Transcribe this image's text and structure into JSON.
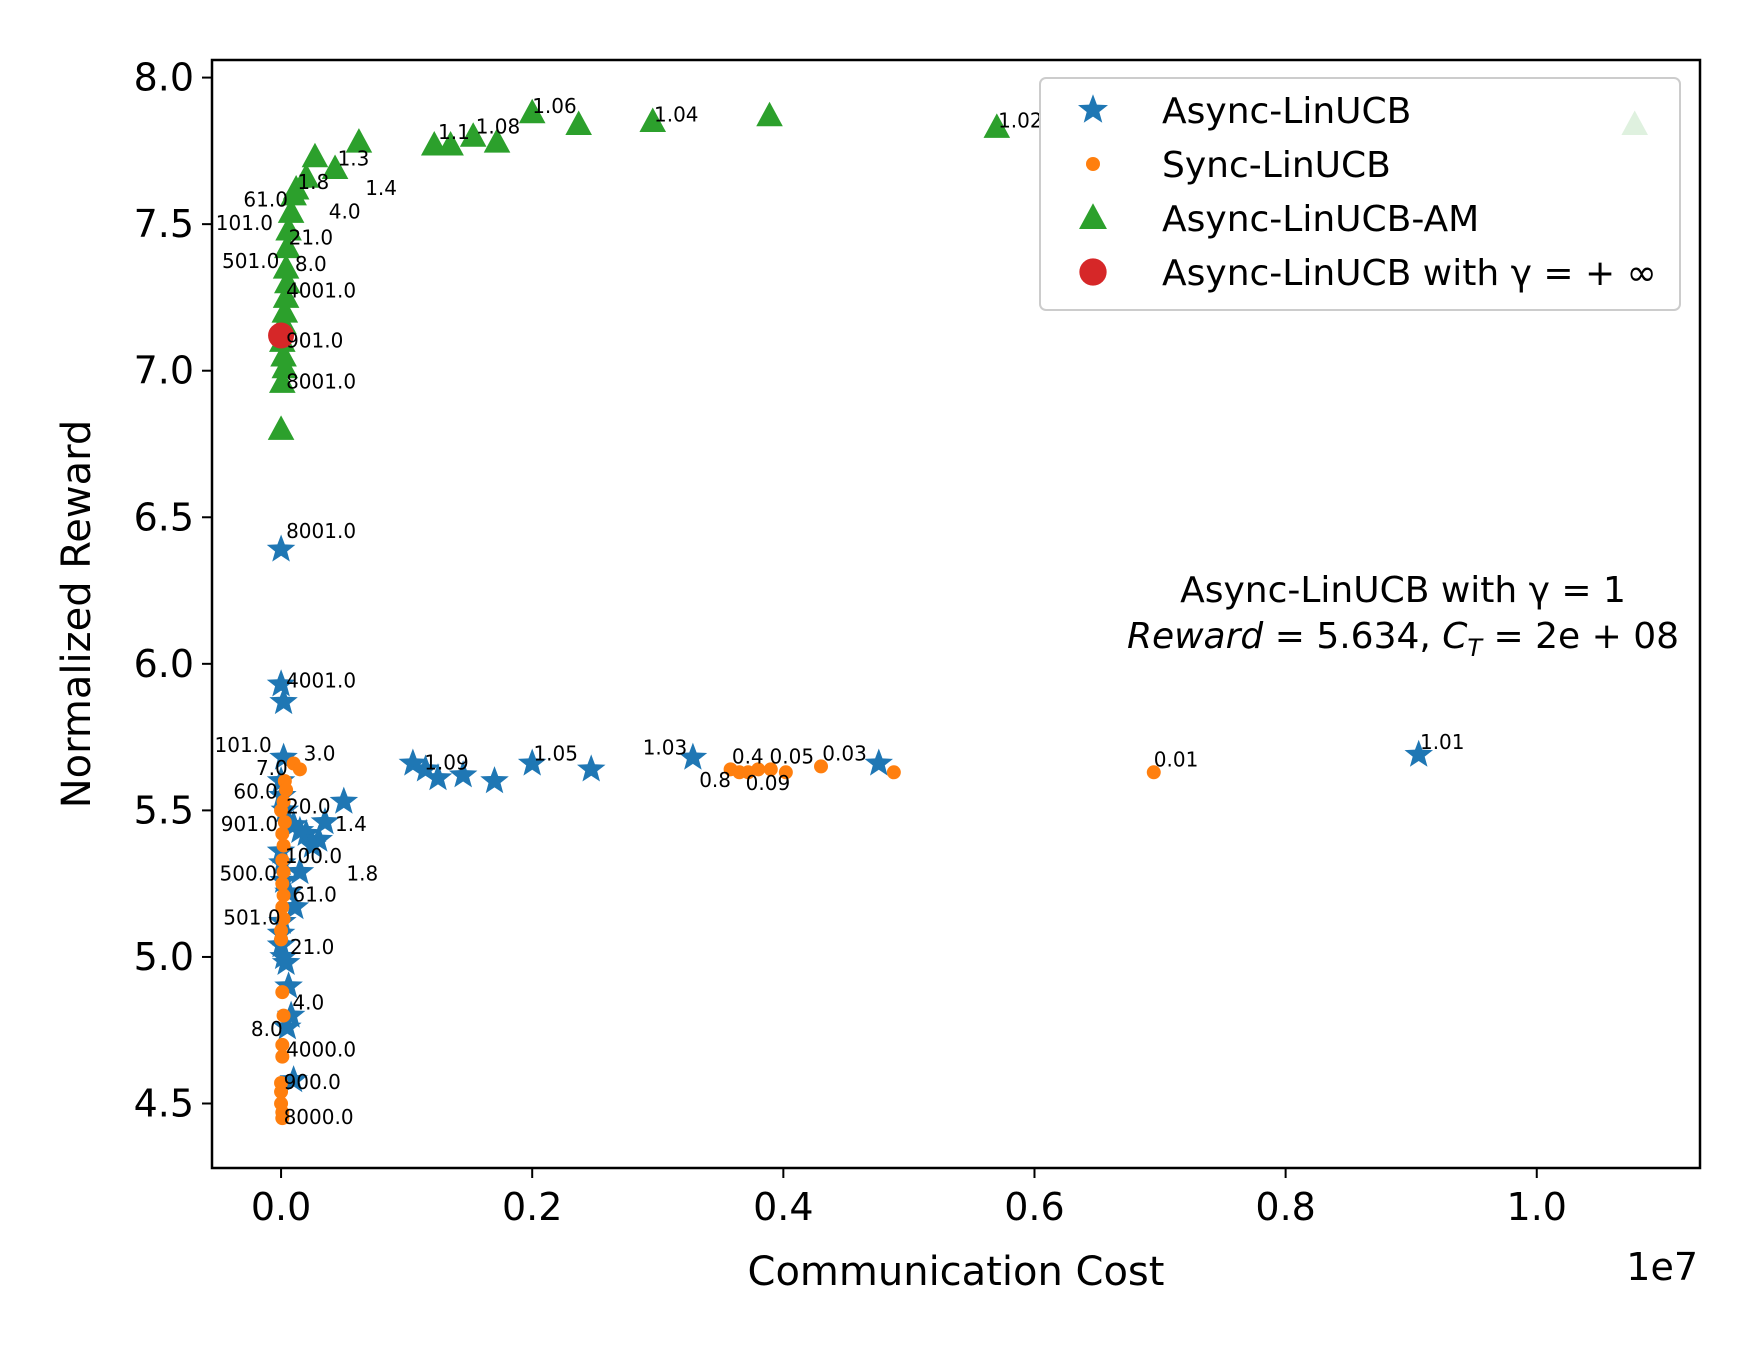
{
  "chart_data": {
    "type": "scatter",
    "title": "",
    "xlabel": "Communication Cost",
    "ylabel": "Normalized Reward",
    "x_offset_label": "1e7",
    "xlim": [
      -0.055,
      1.13
    ],
    "ylim": [
      4.28,
      8.06
    ],
    "x_ticks": [
      0.0,
      0.2,
      0.4,
      0.6,
      0.8,
      1.0
    ],
    "x_tick_labels": [
      "0.0",
      "0.2",
      "0.4",
      "0.6",
      "0.8",
      "1.0"
    ],
    "y_ticks": [
      4.5,
      5.0,
      5.5,
      6.0,
      6.5,
      7.0,
      7.5,
      8.0
    ],
    "y_tick_labels": [
      "4.5",
      "5.0",
      "5.5",
      "6.0",
      "6.5",
      "7.0",
      "7.5",
      "8.0"
    ],
    "colors": {
      "async": "#1f77b4",
      "sync": "#ff7f0e",
      "am": "#2ca02c",
      "inf": "#d62728"
    },
    "legend": {
      "position": "top-right",
      "entries": [
        "Async-LinUCB",
        "Sync-LinUCB",
        "Async-LinUCB-AM",
        "Async-LinUCB with γ = + ∞"
      ]
    },
    "note": {
      "line1": "Async-LinUCB with γ = 1",
      "line2": "Reward = 5.634, C_T = 2e + 08",
      "line2_a": "Reward",
      "line2_b": " = 5.634, ",
      "line2_c": "C",
      "line2_d": "T",
      "line2_e": " = 2e + 08"
    },
    "series": [
      {
        "name": "Async-LinUCB",
        "marker": "star",
        "color": "#1f77b4",
        "points": [
          [
            0.0,
            6.39
          ],
          [
            0.0,
            5.93
          ],
          [
            0.002,
            5.87
          ],
          [
            0.002,
            5.68
          ],
          [
            0.0,
            5.6
          ],
          [
            0.001,
            5.55
          ],
          [
            0.003,
            5.5
          ],
          [
            0.01,
            5.45
          ],
          [
            0.02,
            5.42
          ],
          [
            0.03,
            5.4
          ],
          [
            0.025,
            5.38
          ],
          [
            0.015,
            5.43
          ],
          [
            0.035,
            5.46
          ],
          [
            0.05,
            5.53
          ],
          [
            0.0,
            5.36
          ],
          [
            0.001,
            5.32
          ],
          [
            0.015,
            5.29
          ],
          [
            0.002,
            5.26
          ],
          [
            0.006,
            5.22
          ],
          [
            0.011,
            5.17
          ],
          [
            0.001,
            5.12
          ],
          [
            0.0,
            5.08
          ],
          [
            0.0,
            5.04
          ],
          [
            0.002,
            5.0
          ],
          [
            0.004,
            4.98
          ],
          [
            0.006,
            4.9
          ],
          [
            0.008,
            4.8
          ],
          [
            0.005,
            4.76
          ],
          [
            0.01,
            4.58
          ],
          [
            0.105,
            5.66
          ],
          [
            0.115,
            5.64
          ],
          [
            0.125,
            5.61
          ],
          [
            0.145,
            5.62
          ],
          [
            0.17,
            5.6
          ],
          [
            0.2,
            5.66
          ],
          [
            0.247,
            5.64
          ],
          [
            0.328,
            5.68
          ],
          [
            0.476,
            5.66
          ],
          [
            0.906,
            5.69
          ]
        ]
      },
      {
        "name": "Sync-LinUCB",
        "marker": "circle",
        "color": "#ff7f0e",
        "points": [
          [
            0.01,
            5.66
          ],
          [
            0.015,
            5.64
          ],
          [
            0.003,
            5.6
          ],
          [
            0.004,
            5.57
          ],
          [
            0.002,
            5.53
          ],
          [
            0.0,
            5.5
          ],
          [
            0.003,
            5.46
          ],
          [
            0.001,
            5.42
          ],
          [
            0.002,
            5.38
          ],
          [
            0.001,
            5.33
          ],
          [
            0.002,
            5.29
          ],
          [
            0.001,
            5.25
          ],
          [
            0.002,
            5.21
          ],
          [
            0.001,
            5.17
          ],
          [
            0.002,
            5.13
          ],
          [
            0.0,
            5.09
          ],
          [
            0.0,
            5.06
          ],
          [
            0.001,
            4.88
          ],
          [
            0.002,
            4.8
          ],
          [
            0.001,
            4.7
          ],
          [
            0.001,
            4.66
          ],
          [
            0.0,
            4.57
          ],
          [
            0.0,
            4.54
          ],
          [
            0.0,
            4.5
          ],
          [
            0.001,
            4.47
          ],
          [
            0.001,
            4.45
          ],
          [
            0.358,
            5.64
          ],
          [
            0.365,
            5.63
          ],
          [
            0.372,
            5.63
          ],
          [
            0.38,
            5.64
          ],
          [
            0.39,
            5.64
          ],
          [
            0.402,
            5.63
          ],
          [
            0.43,
            5.65
          ],
          [
            0.488,
            5.63
          ],
          [
            0.695,
            5.63
          ]
        ]
      },
      {
        "name": "Async-LinUCB-AM",
        "marker": "triangle",
        "color": "#2ca02c",
        "points": [
          [
            0.0,
            6.8
          ],
          [
            0.001,
            6.96
          ],
          [
            0.003,
            7.01
          ],
          [
            0.002,
            7.05
          ],
          [
            0.001,
            7.1
          ],
          [
            0.002,
            7.16
          ],
          [
            0.003,
            7.2
          ],
          [
            0.004,
            7.25
          ],
          [
            0.005,
            7.3
          ],
          [
            0.004,
            7.35
          ],
          [
            0.005,
            7.42
          ],
          [
            0.006,
            7.48
          ],
          [
            0.008,
            7.54
          ],
          [
            0.01,
            7.6
          ],
          [
            0.012,
            7.62
          ],
          [
            0.02,
            7.66
          ],
          [
            0.027,
            7.73
          ],
          [
            0.043,
            7.69
          ],
          [
            0.062,
            7.78
          ],
          [
            0.122,
            7.77
          ],
          [
            0.135,
            7.77
          ],
          [
            0.153,
            7.8
          ],
          [
            0.172,
            7.78
          ],
          [
            0.2,
            7.88
          ],
          [
            0.237,
            7.84
          ],
          [
            0.296,
            7.85
          ],
          [
            0.389,
            7.87
          ],
          [
            0.57,
            7.83
          ],
          [
            1.078,
            7.84
          ]
        ]
      },
      {
        "name": "Async-LinUCB with γ = + ∞",
        "marker": "bigcircle",
        "color": "#d62728",
        "points": [
          [
            0.0,
            7.12
          ]
        ]
      }
    ],
    "annotations": [
      {
        "text": "1.06",
        "x": 0.2,
        "y": 7.88
      },
      {
        "text": "1.1",
        "x": 0.125,
        "y": 7.79
      },
      {
        "text": "1.08",
        "x": 0.155,
        "y": 7.81
      },
      {
        "text": "1.04",
        "x": 0.297,
        "y": 7.85
      },
      {
        "text": "1.02",
        "x": 0.571,
        "y": 7.83
      },
      {
        "text": "1.3",
        "x": 0.045,
        "y": 7.7
      },
      {
        "text": "1.8",
        "x": 0.013,
        "y": 7.62
      },
      {
        "text": "1.4",
        "x": 0.067,
        "y": 7.6
      },
      {
        "text": "61.0",
        "x": -0.03,
        "y": 7.56
      },
      {
        "text": "4.0",
        "x": 0.038,
        "y": 7.52
      },
      {
        "text": "101.0",
        "x": -0.052,
        "y": 7.48
      },
      {
        "text": "21.0",
        "x": 0.006,
        "y": 7.43
      },
      {
        "text": "501.0",
        "x": -0.047,
        "y": 7.35
      },
      {
        "text": "8.0",
        "x": 0.011,
        "y": 7.34
      },
      {
        "text": "4001.0",
        "x": 0.004,
        "y": 7.25
      },
      {
        "text": "901.0",
        "x": 0.004,
        "y": 7.08
      },
      {
        "text": "8001.0",
        "x": 0.004,
        "y": 6.94
      },
      {
        "text": "8001.0",
        "x": 0.004,
        "y": 6.43
      },
      {
        "text": "4001.0",
        "x": 0.004,
        "y": 5.92
      },
      {
        "text": "101.0",
        "x": -0.053,
        "y": 5.7
      },
      {
        "text": "3.0",
        "x": 0.018,
        "y": 5.67
      },
      {
        "text": "7.0",
        "x": -0.02,
        "y": 5.62
      },
      {
        "text": "1.09",
        "x": 0.114,
        "y": 5.64
      },
      {
        "text": "1.05",
        "x": 0.201,
        "y": 5.67
      },
      {
        "text": "1.03",
        "x": 0.288,
        "y": 5.69
      },
      {
        "text": "0.4",
        "x": 0.359,
        "y": 5.66
      },
      {
        "text": "0.05",
        "x": 0.389,
        "y": 5.66
      },
      {
        "text": "0.03",
        "x": 0.431,
        "y": 5.67
      },
      {
        "text": "0.8",
        "x": 0.333,
        "y": 5.58
      },
      {
        "text": "0.09",
        "x": 0.37,
        "y": 5.57
      },
      {
        "text": "0.01",
        "x": 0.695,
        "y": 5.65
      },
      {
        "text": "1.01",
        "x": 0.907,
        "y": 5.71
      },
      {
        "text": "60.0",
        "x": -0.038,
        "y": 5.54
      },
      {
        "text": "20.0",
        "x": 0.004,
        "y": 5.49
      },
      {
        "text": "901.0",
        "x": -0.048,
        "y": 5.43
      },
      {
        "text": "1.4",
        "x": 0.043,
        "y": 5.43
      },
      {
        "text": "100.0",
        "x": 0.003,
        "y": 5.32
      },
      {
        "text": "500.0",
        "x": -0.049,
        "y": 5.26
      },
      {
        "text": "1.8",
        "x": 0.052,
        "y": 5.26
      },
      {
        "text": "61.0",
        "x": 0.009,
        "y": 5.19
      },
      {
        "text": "501.0",
        "x": -0.046,
        "y": 5.11
      },
      {
        "text": "21.0",
        "x": 0.007,
        "y": 5.01
      },
      {
        "text": "4.0",
        "x": 0.009,
        "y": 4.82
      },
      {
        "text": "8.0",
        "x": -0.024,
        "y": 4.73
      },
      {
        "text": "4000.0",
        "x": 0.004,
        "y": 4.66
      },
      {
        "text": "900.0",
        "x": 0.002,
        "y": 4.55
      },
      {
        "text": "8000.0",
        "x": 0.002,
        "y": 4.43
      }
    ]
  }
}
